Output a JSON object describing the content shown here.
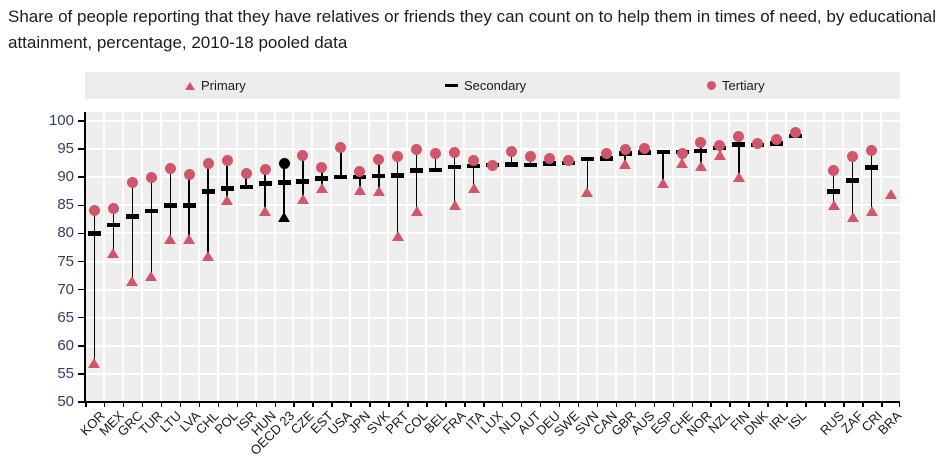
{
  "title": "Share of people reporting that they have relatives or friends they can count on to help them in times of need, by educational attainment, percentage, 2010-18 pooled data",
  "legend": {
    "items": [
      {
        "label": "Primary",
        "marker": "triangle-icon"
      },
      {
        "label": "Secondary",
        "marker": "dash-icon"
      },
      {
        "label": "Tertiary",
        "marker": "circle-icon"
      }
    ]
  },
  "colors": {
    "series_red": "#d0566b",
    "series_black": "#000000",
    "plot_background": "#efeeee",
    "legend_background": "#ececec",
    "gridline": "#ffffff",
    "axis": "#000000",
    "y_tick_label": "#2f3f60",
    "x_tick_label": "#1a1a1a"
  },
  "chart_data": {
    "type": "scatter",
    "title": "Share of people reporting that they have relatives or friends they can count on to help them in times of need, by educational attainment, percentage, 2010-18 pooled data",
    "ylabel": "",
    "xlabel": "",
    "ylim": [
      50,
      100
    ],
    "ytick_step": 5,
    "grid": true,
    "legend_position": "top",
    "series_names": [
      "Primary",
      "Secondary",
      "Tertiary"
    ],
    "points": [
      {
        "label": "KOR",
        "primary": 57,
        "secondary": 80,
        "tertiary": 84
      },
      {
        "label": "MEX",
        "primary": 76.5,
        "secondary": 81.5,
        "tertiary": 84.5
      },
      {
        "label": "GRC",
        "primary": 71.5,
        "secondary": 83,
        "tertiary": 89
      },
      {
        "label": "TUR",
        "primary": 72.5,
        "secondary": 84,
        "tertiary": 90
      },
      {
        "label": "LTU",
        "primary": 79,
        "secondary": 85,
        "tertiary": 91.5
      },
      {
        "label": "LVA",
        "primary": 79,
        "secondary": 85,
        "tertiary": 90.5
      },
      {
        "label": "CHL",
        "primary": 76,
        "secondary": 87.5,
        "tertiary": 92.5
      },
      {
        "label": "POL",
        "primary": 86,
        "secondary": 88,
        "tertiary": 93
      },
      {
        "label": "ISR",
        "primary": null,
        "secondary": 88.3,
        "tertiary": 90.6
      },
      {
        "label": "HUN",
        "primary": 84,
        "secondary": 88.9,
        "tertiary": 91.3
      },
      {
        "label": "OECD 23",
        "primary": 83,
        "secondary": 89.1,
        "tertiary": 92.4,
        "highlight": true
      },
      {
        "label": "CZE",
        "primary": 86.2,
        "secondary": 89.2,
        "tertiary": 93.9
      },
      {
        "label": "EST",
        "primary": 88,
        "secondary": 89.8,
        "tertiary": 91.8
      },
      {
        "label": "USA",
        "primary": null,
        "secondary": 90,
        "tertiary": 95.3
      },
      {
        "label": "JPN",
        "primary": 87.7,
        "secondary": 90,
        "tertiary": 91
      },
      {
        "label": "SVK",
        "primary": 87.5,
        "secondary": 90.2,
        "tertiary": 93.2
      },
      {
        "label": "PRT",
        "primary": 79.5,
        "secondary": 90.3,
        "tertiary": 93.6
      },
      {
        "label": "COL",
        "primary": 84,
        "secondary": 91.2,
        "tertiary": 95
      },
      {
        "label": "BEL",
        "primary": null,
        "secondary": 91.3,
        "tertiary": 94.2
      },
      {
        "label": "FRA",
        "primary": 85,
        "secondary": 91.8,
        "tertiary": 94.4
      },
      {
        "label": "ITA",
        "primary": 88,
        "secondary": 92,
        "tertiary": 93
      },
      {
        "label": "LUX",
        "primary": null,
        "secondary": 92.2,
        "tertiary": 92
      },
      {
        "label": "NLD",
        "primary": null,
        "secondary": 92.3,
        "tertiary": 94.6
      },
      {
        "label": "AUT",
        "primary": null,
        "secondary": 92.2,
        "tertiary": 93.6
      },
      {
        "label": "DEU",
        "primary": null,
        "secondary": 92.4,
        "tertiary": 93.3
      },
      {
        "label": "SWE",
        "primary": null,
        "secondary": 92.5,
        "tertiary": 92.9
      },
      {
        "label": "SVN",
        "primary": 87.3,
        "secondary": 93.2,
        "tertiary": null
      },
      {
        "label": "CAN",
        "primary": null,
        "secondary": 93.3,
        "tertiary": 94.3
      },
      {
        "label": "GBR",
        "primary": 92.3,
        "secondary": 94.2,
        "tertiary": 95
      },
      {
        "label": "AUS",
        "primary": null,
        "secondary": 94.4,
        "tertiary": 95.1
      },
      {
        "label": "ESP",
        "primary": 89,
        "secondary": 94.5,
        "tertiary": null
      },
      {
        "label": "CHE",
        "primary": 92.5,
        "secondary": 94.5,
        "tertiary": 94.3
      },
      {
        "label": "NOR",
        "primary": 92,
        "secondary": 94.7,
        "tertiary": 96.1
      },
      {
        "label": "NZL",
        "primary": 93.9,
        "secondary": 95.2,
        "tertiary": 95.7
      },
      {
        "label": "FIN",
        "primary": 90,
        "secondary": 95.8,
        "tertiary": 97.2
      },
      {
        "label": "DNK",
        "primary": null,
        "secondary": 95.7,
        "tertiary": 96
      },
      {
        "label": "IRL",
        "primary": null,
        "secondary": 96,
        "tertiary": 96.7
      },
      {
        "label": "ISL",
        "primary": null,
        "secondary": 97.3,
        "tertiary": 98
      },
      {
        "label": "",
        "gap": true
      },
      {
        "label": "RUS",
        "primary": 85,
        "secondary": 87.5,
        "tertiary": 91.2
      },
      {
        "label": "ZAF",
        "primary": 83,
        "secondary": 89.4,
        "tertiary": 93.7
      },
      {
        "label": "CRI",
        "primary": 84,
        "secondary": 91.7,
        "tertiary": 94.8
      },
      {
        "label": "BRA",
        "primary": 87,
        "secondary": null,
        "tertiary": null
      }
    ]
  }
}
